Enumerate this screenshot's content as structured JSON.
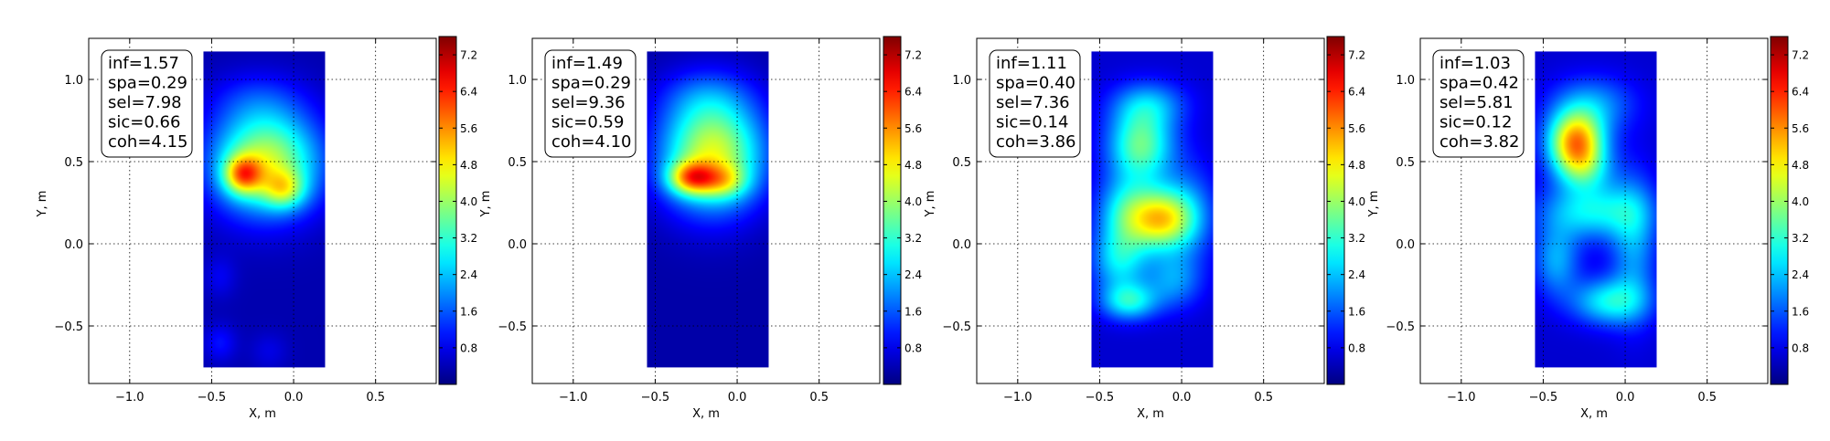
{
  "chart_data": [
    {
      "type": "heatmap",
      "xlabel": "X, m",
      "ylabel": "Y, m",
      "xlim": [
        -1.25,
        0.87
      ],
      "ylim": [
        -0.85,
        1.25
      ],
      "xticks": [
        -1.0,
        -0.5,
        0.0,
        0.5
      ],
      "xtick_labels": [
        "−1.0",
        "−0.5",
        "0.0",
        "0.5"
      ],
      "yticks": [
        -0.5,
        0.0,
        0.5,
        1.0
      ],
      "ytick_labels": [
        "−0.5",
        "0.0",
        "0.5",
        "1.0"
      ],
      "grid": true,
      "data_extent": {
        "x": [
          -0.55,
          0.19
        ],
        "y": [
          -0.75,
          1.17
        ]
      },
      "colorbar": {
        "range": [
          0,
          7.6
        ],
        "ticks": [
          0.8,
          1.6,
          2.4,
          3.2,
          4.0,
          4.8,
          5.6,
          6.4,
          7.2
        ],
        "tick_labels": [
          "0.8",
          "1.6",
          "2.4",
          "3.2",
          "4.0",
          "4.8",
          "5.6",
          "6.4",
          "7.2"
        ]
      },
      "background_level": 0.35,
      "blobs": [
        {
          "x": -0.17,
          "y": 0.5,
          "sx": 0.23,
          "sy": 0.22,
          "v": 4.0
        },
        {
          "x": -0.31,
          "y": 0.42,
          "sx": 0.08,
          "sy": 0.08,
          "v": 3.0
        },
        {
          "x": -0.06,
          "y": 0.33,
          "sx": 0.09,
          "sy": 0.08,
          "v": 2.0
        },
        {
          "x": -0.23,
          "y": 0.88,
          "sx": 0.2,
          "sy": 0.12,
          "v": 0.6
        },
        {
          "x": -0.45,
          "y": -0.2,
          "sx": 0.07,
          "sy": 0.09,
          "v": 0.5
        },
        {
          "x": -0.45,
          "y": -0.6,
          "sx": 0.07,
          "sy": 0.08,
          "v": 0.7
        },
        {
          "x": -0.15,
          "y": -0.65,
          "sx": 0.08,
          "sy": 0.08,
          "v": 0.4
        }
      ],
      "annotation": [
        "inf=1.57",
        "spa=0.29",
        "sel=7.98",
        "sic=0.66",
        "coh=4.15"
      ]
    },
    {
      "type": "heatmap",
      "xlabel": "X, m",
      "ylabel": "Y, m",
      "xlim": [
        -1.25,
        0.87
      ],
      "ylim": [
        -0.85,
        1.25
      ],
      "xticks": [
        -1.0,
        -0.5,
        0.0,
        0.5
      ],
      "xtick_labels": [
        "−1.0",
        "−0.5",
        "0.0",
        "0.5"
      ],
      "yticks": [
        -0.5,
        0.0,
        0.5,
        1.0
      ],
      "ytick_labels": [
        "−0.5",
        "0.0",
        "0.5",
        "1.0"
      ],
      "grid": true,
      "data_extent": {
        "x": [
          -0.55,
          0.19
        ],
        "y": [
          -0.75,
          1.17
        ]
      },
      "colorbar": {
        "range": [
          0,
          7.6
        ],
        "ticks": [
          0.8,
          1.6,
          2.4,
          3.2,
          4.0,
          4.8,
          5.6,
          6.4,
          7.2
        ],
        "tick_labels": [
          "0.8",
          "1.6",
          "2.4",
          "3.2",
          "4.0",
          "4.8",
          "5.6",
          "6.4",
          "7.2"
        ]
      },
      "background_level": 0.3,
      "blobs": [
        {
          "x": -0.15,
          "y": 0.55,
          "sx": 0.22,
          "sy": 0.24,
          "v": 4.2
        },
        {
          "x": -0.28,
          "y": 0.4,
          "sx": 0.1,
          "sy": 0.07,
          "v": 3.2
        },
        {
          "x": -0.08,
          "y": 0.38,
          "sx": 0.1,
          "sy": 0.07,
          "v": 1.6
        },
        {
          "x": -0.2,
          "y": 0.9,
          "sx": 0.2,
          "sy": 0.12,
          "v": 0.7
        }
      ],
      "annotation": [
        "inf=1.49",
        "spa=0.29",
        "sel=9.36",
        "sic=0.59",
        "coh=4.10"
      ]
    },
    {
      "type": "heatmap",
      "xlabel": "X, m",
      "ylabel": "Y, m",
      "xlim": [
        -1.25,
        0.87
      ],
      "ylim": [
        -0.85,
        1.25
      ],
      "xticks": [
        -1.0,
        -0.5,
        0.0,
        0.5
      ],
      "xtick_labels": [
        "−1.0",
        "−0.5",
        "0.0",
        "0.5"
      ],
      "yticks": [
        -0.5,
        0.0,
        0.5,
        1.0
      ],
      "ytick_labels": [
        "−0.5",
        "0.0",
        "0.5",
        "1.0"
      ],
      "grid": true,
      "data_extent": {
        "x": [
          -0.55,
          0.19
        ],
        "y": [
          -0.75,
          1.17
        ]
      },
      "colorbar": {
        "range": [
          0,
          7.6
        ],
        "ticks": [
          0.8,
          1.6,
          2.4,
          3.2,
          4.0,
          4.8,
          5.6,
          6.4,
          7.2
        ],
        "tick_labels": [
          "0.8",
          "1.6",
          "2.4",
          "3.2",
          "4.0",
          "4.8",
          "5.6",
          "6.4",
          "7.2"
        ]
      },
      "background_level": 0.6,
      "blobs": [
        {
          "x": -0.25,
          "y": 0.6,
          "sx": 0.14,
          "sy": 0.16,
          "v": 3.0
        },
        {
          "x": -0.2,
          "y": 0.85,
          "sx": 0.16,
          "sy": 0.1,
          "v": 1.4
        },
        {
          "x": -0.13,
          "y": 0.15,
          "sx": 0.14,
          "sy": 0.13,
          "v": 4.0
        },
        {
          "x": -0.35,
          "y": 0.2,
          "sx": 0.12,
          "sy": 0.15,
          "v": 1.8
        },
        {
          "x": -0.38,
          "y": -0.1,
          "sx": 0.12,
          "sy": 0.14,
          "v": 2.0
        },
        {
          "x": 0.05,
          "y": 0.2,
          "sx": 0.12,
          "sy": 0.22,
          "v": 1.0
        },
        {
          "x": -0.32,
          "y": -0.35,
          "sx": 0.12,
          "sy": 0.08,
          "v": 2.2
        },
        {
          "x": -0.05,
          "y": -0.22,
          "sx": 0.12,
          "sy": 0.12,
          "v": 1.4
        }
      ],
      "annotation": [
        "inf=1.11",
        "spa=0.40",
        "sel=7.36",
        "sic=0.14",
        "coh=3.86"
      ]
    },
    {
      "type": "heatmap",
      "xlabel": "X, m",
      "ylabel": "Y, m",
      "xlim": [
        -1.25,
        0.87
      ],
      "ylim": [
        -0.85,
        1.25
      ],
      "xticks": [
        -1.0,
        -0.5,
        0.0,
        0.5
      ],
      "xtick_labels": [
        "−1.0",
        "−0.5",
        "0.0",
        "0.5"
      ],
      "yticks": [
        -0.5,
        0.0,
        0.5,
        1.0
      ],
      "ytick_labels": [
        "−0.5",
        "0.0",
        "0.5",
        "1.0"
      ],
      "grid": true,
      "data_extent": {
        "x": [
          -0.55,
          0.19
        ],
        "y": [
          -0.75,
          1.17
        ]
      },
      "colorbar": {
        "range": [
          0,
          7.6
        ],
        "ticks": [
          0.8,
          1.6,
          2.4,
          3.2,
          4.0,
          4.8,
          5.6,
          6.4,
          7.2
        ],
        "tick_labels": [
          "0.8",
          "1.6",
          "2.4",
          "3.2",
          "4.0",
          "4.8",
          "5.6",
          "6.4",
          "7.2"
        ]
      },
      "background_level": 0.6,
      "blobs": [
        {
          "x": -0.3,
          "y": 0.62,
          "sx": 0.12,
          "sy": 0.13,
          "v": 4.8
        },
        {
          "x": -0.25,
          "y": 0.45,
          "sx": 0.12,
          "sy": 0.1,
          "v": 1.6
        },
        {
          "x": -0.2,
          "y": 0.85,
          "sx": 0.18,
          "sy": 0.12,
          "v": 1.4
        },
        {
          "x": -0.2,
          "y": 0.2,
          "sx": 0.22,
          "sy": 0.12,
          "v": 2.2
        },
        {
          "x": 0.05,
          "y": 0.0,
          "sx": 0.1,
          "sy": 0.3,
          "v": 1.5
        },
        {
          "x": -0.42,
          "y": -0.1,
          "sx": 0.1,
          "sy": 0.15,
          "v": 1.6
        },
        {
          "x": -0.1,
          "y": -0.35,
          "sx": 0.16,
          "sy": 0.1,
          "v": 2.2
        }
      ],
      "annotation": [
        "inf=1.03",
        "spa=0.42",
        "sel=5.81",
        "sic=0.12",
        "coh=3.82"
      ]
    }
  ]
}
